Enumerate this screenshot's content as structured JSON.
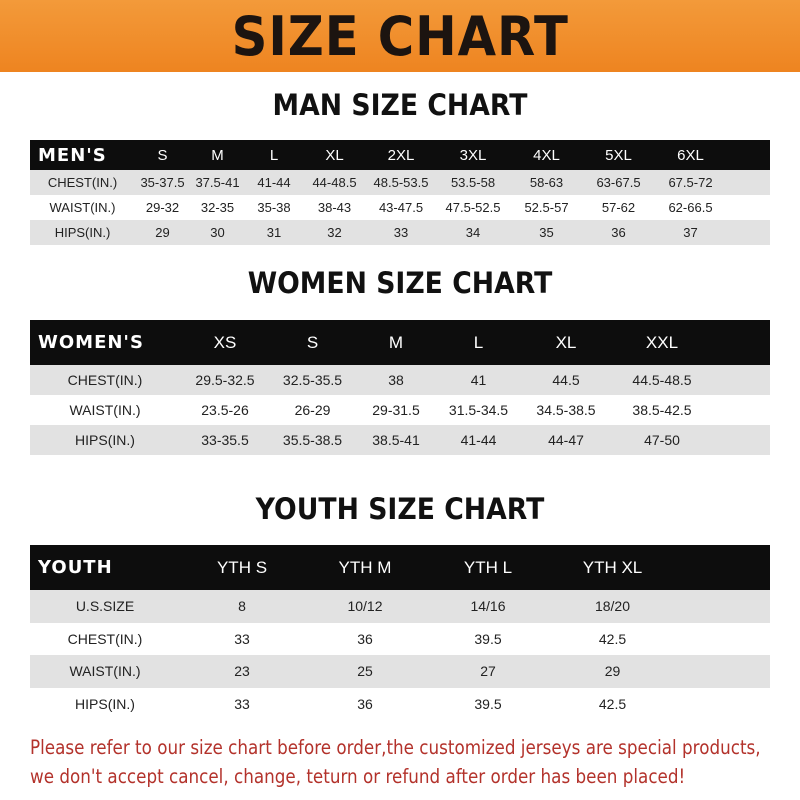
{
  "banner": {
    "title": "SIZE CHART",
    "color": "#ef8a26"
  },
  "men": {
    "title": "MAN SIZE CHART",
    "header": "MEN'S",
    "sizes": [
      "S",
      "M",
      "L",
      "XL",
      "2XL",
      "3XL",
      "4XL",
      "5XL",
      "6XL"
    ],
    "rows": [
      {
        "label": "CHEST(IN.)",
        "values": [
          "35-37.5",
          "37.5-41",
          "41-44",
          "44-48.5",
          "48.5-53.5",
          "53.5-58",
          "58-63",
          "63-67.5",
          "67.5-72"
        ]
      },
      {
        "label": "WAIST(IN.)",
        "values": [
          "29-32",
          "32-35",
          "35-38",
          "38-43",
          "43-47.5",
          "47.5-52.5",
          "52.5-57",
          "57-62",
          "62-66.5"
        ]
      },
      {
        "label": "HIPS(IN.)",
        "values": [
          "29",
          "30",
          "31",
          "32",
          "33",
          "34",
          "35",
          "36",
          "37"
        ]
      }
    ]
  },
  "women": {
    "title": "WOMEN SIZE CHART",
    "header": "WOMEN'S",
    "sizes": [
      "XS",
      "S",
      "M",
      "L",
      "XL",
      "XXL"
    ],
    "rows": [
      {
        "label": "CHEST(IN.)",
        "values": [
          "29.5-32.5",
          "32.5-35.5",
          "38",
          "41",
          "44.5",
          "44.5-48.5"
        ]
      },
      {
        "label": "WAIST(IN.)",
        "values": [
          "23.5-26",
          "26-29",
          "29-31.5",
          "31.5-34.5",
          "34.5-38.5",
          "38.5-42.5"
        ]
      },
      {
        "label": "HIPS(IN.)",
        "values": [
          "33-35.5",
          "35.5-38.5",
          "38.5-41",
          "41-44",
          "44-47",
          "47-50"
        ]
      }
    ]
  },
  "youth": {
    "title": "YOUTH SIZE CHART",
    "header": "YOUTH",
    "sizes": [
      "YTH S",
      "YTH M",
      "YTH L",
      "YTH XL"
    ],
    "rows": [
      {
        "label": "U.S.SIZE",
        "values": [
          "8",
          "10/12",
          "14/16",
          "18/20"
        ]
      },
      {
        "label": "CHEST(IN.)",
        "values": [
          "33",
          "36",
          "39.5",
          "42.5"
        ]
      },
      {
        "label": "WAIST(IN.)",
        "values": [
          "23",
          "25",
          "27",
          "29"
        ]
      },
      {
        "label": "HIPS(IN.)",
        "values": [
          "33",
          "36",
          "39.5",
          "42.5"
        ]
      }
    ]
  },
  "note": {
    "line1": "Please refer to our size chart before order,the customized jerseys are special products,",
    "line2": "we don't accept cancel, change, teturn or refund after order has been placed!",
    "color": "#b3322b"
  }
}
